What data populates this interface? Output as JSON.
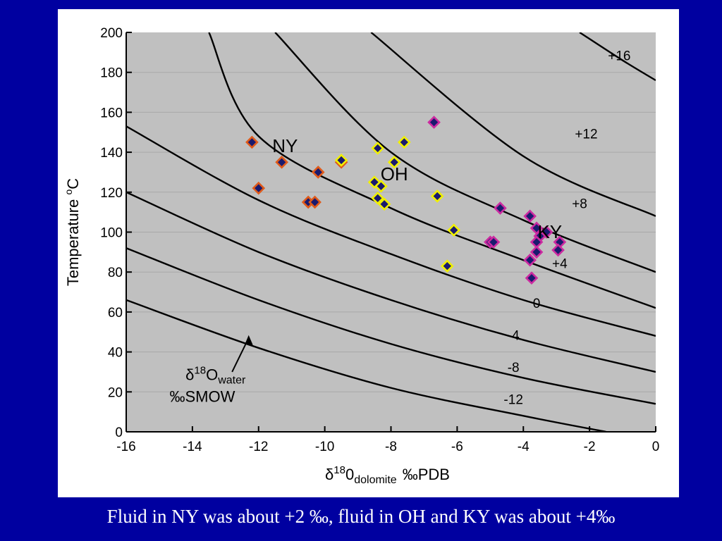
{
  "chart_data": {
    "type": "scatter",
    "xlabel_symbol": "δ",
    "xlabel_sup": "18",
    "xlabel_main": "0",
    "xlabel_sub": "dolomite",
    "xlabel_unit": "‰PDB",
    "ylabel_main": "Temperature ",
    "ylabel_sup": "o",
    "ylabel_unit": "C",
    "xlim": [
      -16,
      0
    ],
    "ylim": [
      0,
      200
    ],
    "x_ticks": [
      -16,
      -14,
      -12,
      -10,
      -8,
      -6,
      -4,
      -2,
      0
    ],
    "y_ticks": [
      0,
      20,
      40,
      60,
      80,
      100,
      120,
      140,
      160,
      180,
      200
    ],
    "grid": "horizontal",
    "curve_legend": {
      "symbol": "δ",
      "sup": "18",
      "main": "O",
      "sub": "water",
      "unit": "‰SMOW"
    },
    "curves": [
      {
        "label": "-12",
        "label_x": -4.3,
        "label_y": 14,
        "points": [
          [
            -16,
            66
          ],
          [
            -12,
            42
          ],
          [
            -8,
            22
          ],
          [
            -4,
            8
          ],
          [
            -1.5,
            0
          ]
        ]
      },
      {
        "label": "-8",
        "label_x": -4.3,
        "label_y": 30,
        "points": [
          [
            -16,
            92
          ],
          [
            -12,
            66
          ],
          [
            -8,
            44
          ],
          [
            -4,
            27
          ],
          [
            0,
            14
          ]
        ]
      },
      {
        "label": "-4",
        "label_x": -4.3,
        "label_y": 46,
        "points": [
          [
            -16,
            120
          ],
          [
            -12,
            90
          ],
          [
            -8,
            66
          ],
          [
            -4,
            46
          ],
          [
            0,
            30
          ]
        ]
      },
      {
        "label": "0",
        "label_x": -3.6,
        "label_y": 62,
        "points": [
          [
            -16,
            153
          ],
          [
            -12,
            116
          ],
          [
            -8,
            89
          ],
          [
            -4,
            66
          ],
          [
            0,
            48
          ]
        ]
      },
      {
        "label": "+4",
        "label_x": -2.9,
        "label_y": 82,
        "points": [
          [
            -13.5,
            200
          ],
          [
            -12,
            148
          ],
          [
            -8,
            112
          ],
          [
            -4,
            86
          ],
          [
            0,
            62
          ]
        ]
      },
      {
        "label": "+8",
        "label_x": -2.3,
        "label_y": 112,
        "points": [
          [
            -11.5,
            200
          ],
          [
            -8,
            140
          ],
          [
            -4,
            106
          ],
          [
            0,
            80
          ]
        ]
      },
      {
        "label": "+12",
        "label_x": -2.1,
        "label_y": 147,
        "points": [
          [
            -8.6,
            200
          ],
          [
            -4,
            138
          ],
          [
            0,
            108
          ]
        ]
      },
      {
        "label": "+16",
        "label_x": -1.1,
        "label_y": 186,
        "points": [
          [
            -2.3,
            200
          ],
          [
            -1,
            186
          ],
          [
            0,
            176
          ]
        ]
      }
    ],
    "series": [
      {
        "name": "NY",
        "label_x": -11.2,
        "label_y": 140,
        "fill": "#1a1a6e",
        "stroke": "#e05a1a",
        "points": [
          [
            -12.2,
            145
          ],
          [
            -11.3,
            135
          ],
          [
            -12.0,
            122
          ],
          [
            -10.5,
            115
          ],
          [
            -10.3,
            115
          ],
          [
            -10.2,
            130
          ],
          [
            -9.5,
            135
          ]
        ]
      },
      {
        "name": "OH",
        "label_x": -7.9,
        "label_y": 126,
        "fill": "#1a1a6e",
        "stroke": "#f0f000",
        "points": [
          [
            -9.5,
            136
          ],
          [
            -8.4,
            142
          ],
          [
            -7.6,
            145
          ],
          [
            -7.9,
            135
          ],
          [
            -8.5,
            125
          ],
          [
            -8.3,
            123
          ],
          [
            -8.4,
            117
          ],
          [
            -8.2,
            114
          ],
          [
            -6.6,
            118
          ],
          [
            -6.1,
            101
          ],
          [
            -6.3,
            83
          ]
        ]
      },
      {
        "name": "KY",
        "label_x": -3.2,
        "label_y": 97,
        "fill": "#1a1a6e",
        "stroke": "#cc2aa0",
        "points": [
          [
            -6.7,
            155
          ],
          [
            -4.7,
            112
          ],
          [
            -3.8,
            108
          ],
          [
            -3.6,
            102
          ],
          [
            -3.3,
            100
          ],
          [
            -3.5,
            98
          ],
          [
            -3.6,
            95
          ],
          [
            -2.9,
            95
          ],
          [
            -3.6,
            90
          ],
          [
            -2.95,
            91
          ],
          [
            -3.8,
            86
          ],
          [
            -3.75,
            77
          ],
          [
            -5.0,
            95
          ],
          [
            -4.9,
            95
          ]
        ]
      }
    ]
  },
  "caption": "Fluid in NY was about +2 ‰, fluid in OH and KY was about +4‰"
}
